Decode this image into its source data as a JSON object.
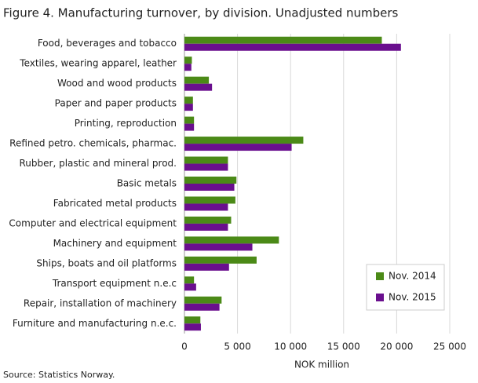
{
  "chart_data": {
    "type": "barh",
    "title": "Figure 4. Manufacturing turnover, by division. Unadjusted numbers",
    "x_label": "NOK million",
    "source": "Source: Statistics Norway.",
    "categories": [
      "Food, beverages and tobacco",
      "Textiles, wearing apparel, leather",
      "Wood and wood products",
      "Paper and paper products",
      "Printing, reproduction",
      "Refined petro. chemicals, pharmac.",
      "Rubber, plastic and mineral prod.",
      "Basic metals",
      "Fabricated metal products",
      "Computer and electrical equipment",
      "Machinery and equipment",
      "Ships, boats and oil platforms",
      "Transport equipment n.e.c",
      "Repair, installation of machinery",
      "Furniture and manufacturing n.e.c."
    ],
    "series": [
      {
        "name": "Nov. 2014",
        "color": "#4b8a17",
        "values": [
          18600,
          700,
          2300,
          800,
          900,
          11200,
          4100,
          4900,
          4800,
          4400,
          8900,
          6800,
          900,
          3500,
          1500
        ]
      },
      {
        "name": "Nov. 2015",
        "color": "#6a0f8e",
        "values": [
          20400,
          650,
          2600,
          800,
          900,
          10100,
          4100,
          4700,
          4100,
          4100,
          6400,
          4200,
          1100,
          3300,
          1550
        ]
      }
    ],
    "xlim": [
      0,
      25000
    ],
    "xticks": [
      0,
      {
        "value": 5000,
        "label": "5 000"
      },
      {
        "value": 10000,
        "label": "10 000"
      },
      {
        "value": 15000,
        "label": "15 000"
      },
      {
        "value": 20000,
        "label": "20 000"
      },
      {
        "value": 25000,
        "label": "25 000"
      }
    ],
    "grid": true,
    "legend": "lower right"
  }
}
